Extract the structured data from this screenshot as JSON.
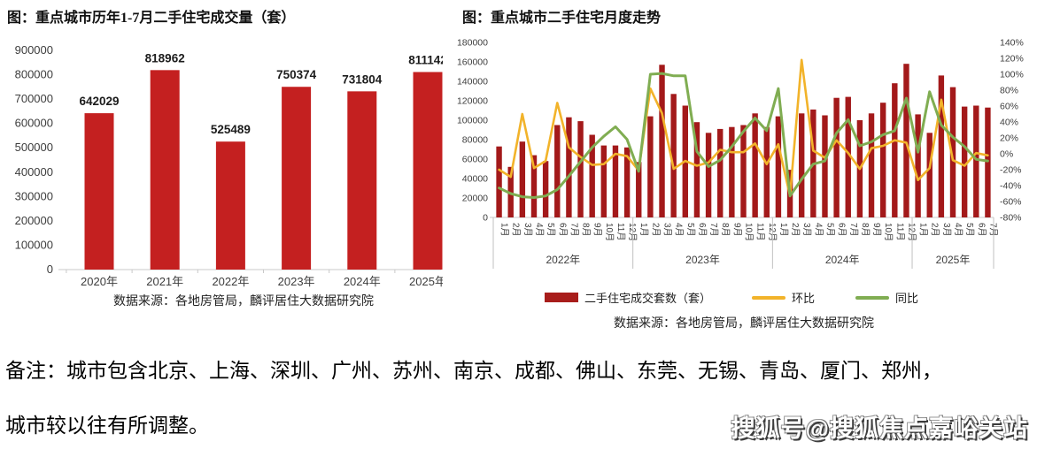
{
  "left_chart": {
    "title": "图：重点城市历年1-7月二手住宅成交量（套）",
    "source": "数据来源：各地房管局，麟评居住大数据研究院"
  },
  "right_chart": {
    "title": "图：重点城市二手住宅月度走势",
    "source": "数据来源：各地房管局，麟评居住大数据研究院",
    "legend": [
      {
        "label": "二手住宅成交套数（套）",
        "type": "bar",
        "color": "#a81d1b"
      },
      {
        "label": "环比",
        "type": "line",
        "color": "#f2b32a"
      },
      {
        "label": "同比",
        "type": "line",
        "color": "#80ad52"
      }
    ]
  },
  "note": {
    "line1": "备注：城市包含北京、上海、深圳、广州、苏州、南京、成都、佛山、东莞、无锡、青岛、厦门、郑州，",
    "line2": "城市较以往有所调整。"
  },
  "watermark": "搜狐号@搜狐焦点嘉峪关站",
  "colors": {
    "bar_red_left": "#c42020",
    "bar_red_right": "#a3191a",
    "line_yellow": "#f2b32a",
    "line_green": "#80ad52",
    "axis_text": "#3d3d3d",
    "axis_line": "#c9c9c9"
  },
  "chart_data": [
    {
      "type": "bar",
      "title": "重点城市历年1-7月二手住宅成交量（套）",
      "categories": [
        "2020年",
        "2021年",
        "2022年",
        "2023年",
        "2024年",
        "2025年"
      ],
      "values": [
        642029,
        818962,
        525489,
        750374,
        731804,
        811142
      ],
      "data_labels": [
        642029,
        818962,
        525489,
        750374,
        731804,
        811142
      ],
      "xlabel": "",
      "ylabel": "",
      "ylim": [
        0,
        900000
      ],
      "ytick_step": 100000,
      "grid": false,
      "bar_color": "#c42020"
    },
    {
      "type": "combo",
      "title": "重点城市二手住宅月度走势",
      "categories": [
        "1月",
        "2月",
        "3月",
        "4月",
        "5月",
        "6月",
        "7月",
        "8月",
        "9月",
        "10月",
        "11月",
        "12月",
        "1月",
        "2月",
        "3月",
        "4月",
        "5月",
        "6月",
        "7月",
        "8月",
        "9月",
        "10月",
        "11月",
        "12月",
        "1月",
        "2月",
        "3月",
        "4月",
        "5月",
        "6月",
        "7月",
        "8月",
        "9月",
        "10月",
        "11月",
        "12月",
        "1月",
        "2月",
        "3月",
        "4月",
        "5月",
        "6月",
        "7月"
      ],
      "year_groups": [
        {
          "label": "2022年",
          "months": 12
        },
        {
          "label": "2023年",
          "months": 12
        },
        {
          "label": "2024年",
          "months": 12
        },
        {
          "label": "2025年",
          "months": 7
        }
      ],
      "series": [
        {
          "name": "二手住宅成交套数（套）",
          "type": "bar",
          "axis": "left",
          "color": "#a3191a",
          "values": [
            73000,
            52000,
            78000,
            64000,
            58000,
            95000,
            103000,
            99000,
            85000,
            74000,
            74000,
            72000,
            57000,
            104000,
            157000,
            127000,
            115000,
            98000,
            87000,
            91000,
            93000,
            95000,
            107000,
            93000,
            104000,
            49000,
            107000,
            111000,
            105000,
            123000,
            124000,
            100000,
            107000,
            118000,
            138000,
            158000,
            106000,
            87000,
            146000,
            134000,
            114000,
            115000,
            113000
          ]
        },
        {
          "name": "环比",
          "type": "line",
          "axis": "right",
          "color": "#f2b32a",
          "values": [
            -20,
            -29,
            50,
            -18,
            -9,
            64,
            8,
            -4,
            -14,
            -13,
            0,
            -3,
            -21,
            82,
            51,
            -19,
            -9,
            -15,
            -11,
            5,
            2,
            2,
            13,
            -13,
            12,
            -53,
            118,
            4,
            -5,
            17,
            1,
            -19,
            7,
            10,
            17,
            14,
            -33,
            -18,
            68,
            -8,
            -15,
            1,
            -2
          ]
        },
        {
          "name": "同比",
          "type": "line",
          "axis": "right",
          "color": "#80ad52",
          "values": [
            -43,
            -50,
            -54,
            -55,
            -53,
            -45,
            -28,
            -10,
            8,
            22,
            34,
            18,
            -22,
            100,
            101,
            98,
            98,
            3,
            -16,
            -8,
            9,
            28,
            45,
            29,
            82,
            -53,
            -32,
            -13,
            -9,
            26,
            43,
            10,
            15,
            24,
            29,
            70,
            2,
            78,
            36,
            21,
            9,
            -7,
            -9
          ]
        }
      ],
      "left_ylim": [
        0,
        180000
      ],
      "left_ytick_step": 20000,
      "right_ylim": [
        -80,
        140
      ],
      "right_ytick_step": 20,
      "right_unit": "%",
      "grid": false,
      "legend_position": "bottom"
    }
  ]
}
